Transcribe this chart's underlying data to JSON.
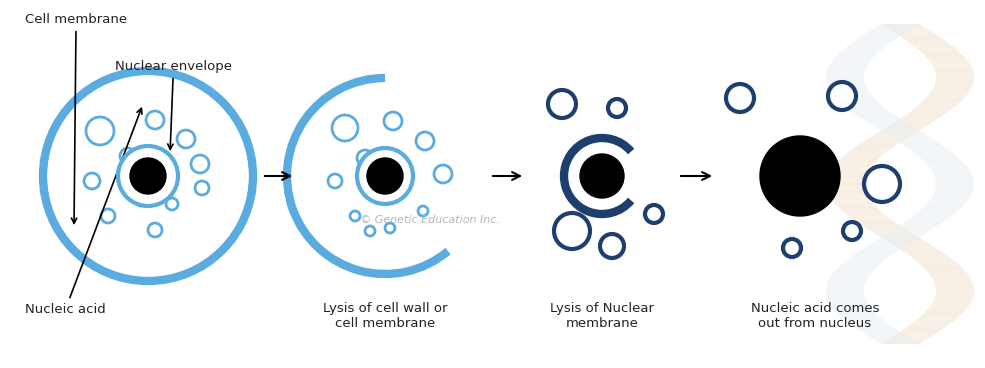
{
  "bg_color": "#ffffff",
  "light_blue": "#5aabdf",
  "dark_blue": "#1e3f6e",
  "black": "#000000",
  "text_color": "#222222",
  "watermark": "© Genetic Education Inc.",
  "watermark_color": "#b0b0b0",
  "labels": {
    "cell_membrane": "Cell membrane",
    "nuclear_envelope": "Nuclear envelope",
    "nucleic_acid": "Nucleic acid",
    "step2": "Lysis of cell wall or\ncell membrane",
    "step3": "Lysis of Nuclear\nmembrane",
    "step4": "Nucleic acid comes\nout from nucleus"
  },
  "figsize": [
    9.85,
    3.68
  ],
  "dpi": 100
}
